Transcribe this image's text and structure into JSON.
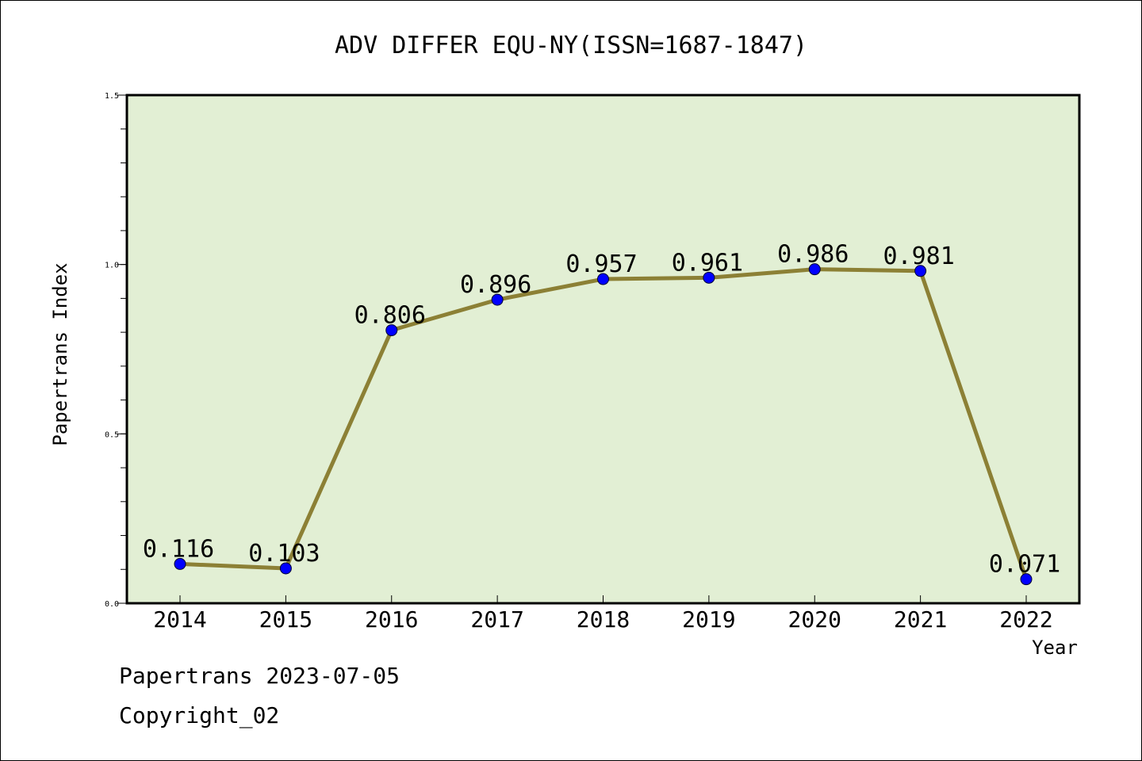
{
  "chart_data": {
    "type": "line",
    "title": "ADV DIFFER EQU-NY(ISSN=1687-1847)",
    "xlabel": "Year",
    "ylabel": "Papertrans Index",
    "categories": [
      "2014",
      "2015",
      "2016",
      "2017",
      "2018",
      "2019",
      "2020",
      "2021",
      "2022"
    ],
    "series": [
      {
        "values": [
          0.116,
          0.103,
          0.806,
          0.896,
          0.957,
          0.961,
          0.986,
          0.981,
          0.071
        ],
        "labels": [
          "0.116",
          "0.103",
          "0.806",
          "0.896",
          "0.957",
          "0.961",
          "0.986",
          "0.981",
          "0.071"
        ]
      }
    ],
    "ylim": [
      0.0,
      1.5
    ],
    "yticks": [
      "0.0",
      "0.5",
      "1.0",
      "1.5"
    ],
    "grid": false,
    "colors": {
      "plot_background": "#e2efd4",
      "line": "#8c8035",
      "marker": "#0000ff"
    }
  },
  "footer": {
    "line1": "Papertrans 2023-07-05",
    "line2": "Copyright_02"
  }
}
